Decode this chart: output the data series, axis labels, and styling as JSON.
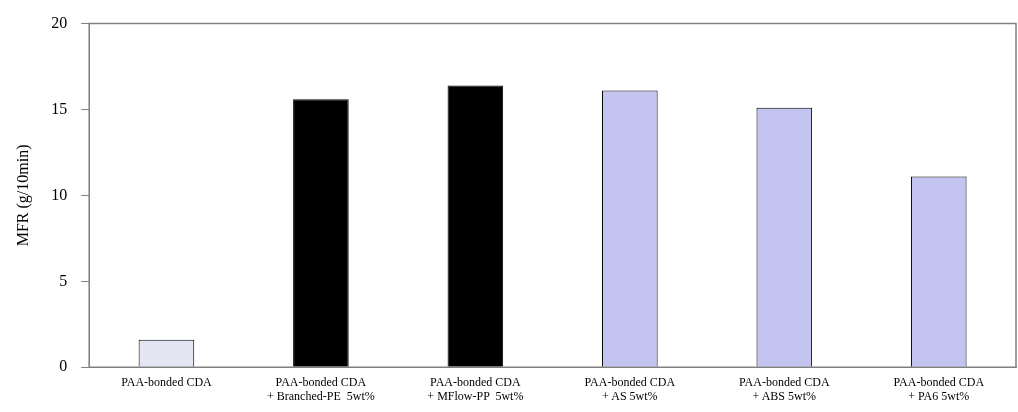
{
  "chart_data": {
    "type": "bar",
    "ylabel": "MFR (g/10min)",
    "categories": [
      "PAA-bonded CDA",
      "PAA-bonded CDA\n+ Branched-PE  5wt%",
      "PAA-bonded CDA\n+ MFlow-PP  5wt%",
      "PAA-bonded CDA\n+ AS 5wt%",
      "PAA-bonded CDA\n+ ABS 5wt%",
      "PAA-bonded CDA\n+ PA6 5wt%"
    ],
    "values": [
      1.6,
      15.6,
      16.4,
      16.1,
      15.1,
      11.1
    ],
    "colors": [
      "#e4e6f4",
      "#000000",
      "#000000",
      "#c4c4f0",
      "#c4c4f0",
      "#c4c4f0"
    ],
    "ylim": [
      0,
      20
    ],
    "yticks": [
      0,
      5,
      10,
      15,
      20
    ],
    "grid": false,
    "legend": false
  }
}
